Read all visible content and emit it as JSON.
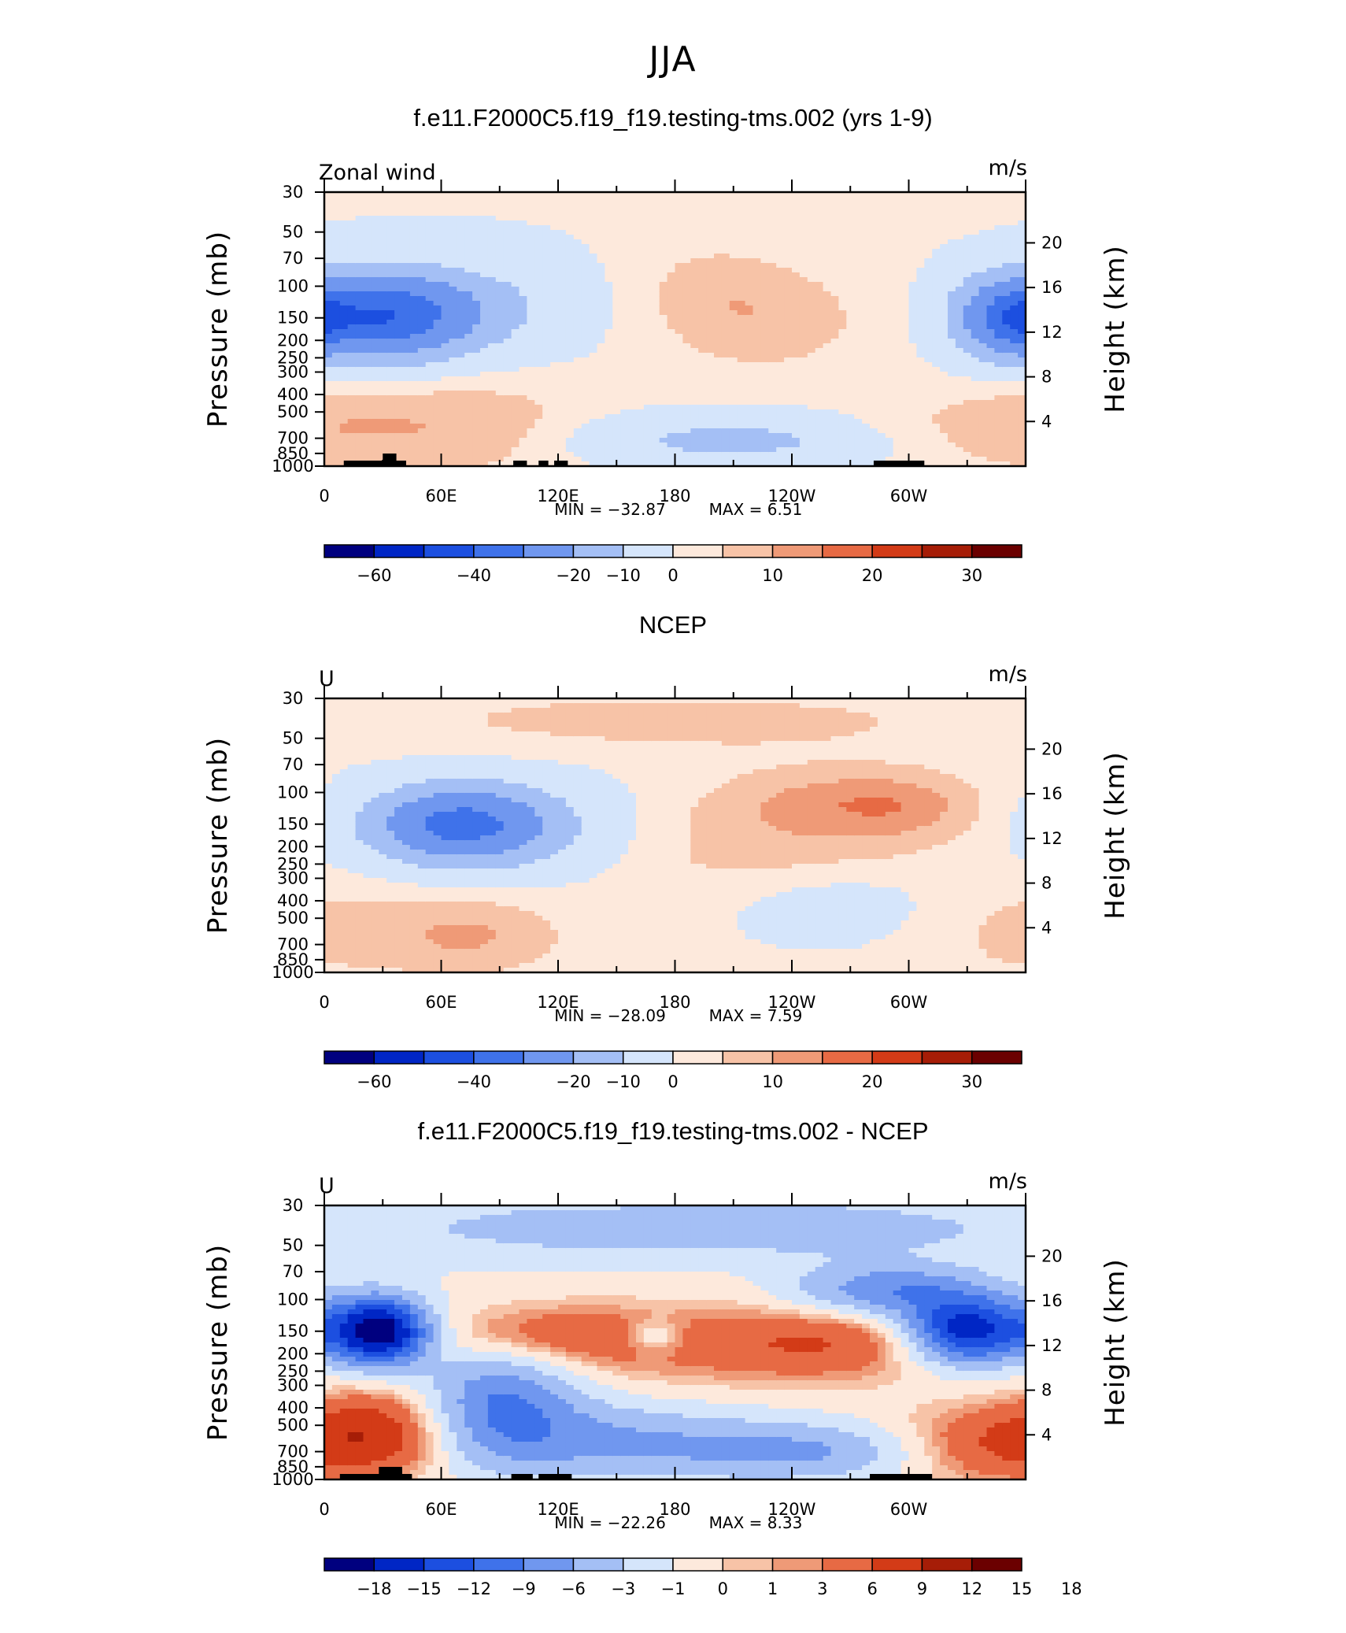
{
  "figure": {
    "main_title": "JJA",
    "colors": {
      "cmap": [
        "#00007f",
        "#0026c5",
        "#1c4fe0",
        "#3f72ea",
        "#7097ef",
        "#a4bff5",
        "#d5e5fb",
        "#fde9dc",
        "#f7c3a7",
        "#ef9a77",
        "#e76a44",
        "#d33b17",
        "#a61d07",
        "#6b0000"
      ]
    }
  },
  "chart_data": [
    {
      "type": "contour",
      "title": "f.e11.F2000C5.f19_f19.testing-tms.002 (yrs 1-9)",
      "variable_label": "Zonal wind",
      "units": "m/s",
      "ylabel": "Pressure (mb)",
      "ylabel_right": "Height (km)",
      "x_tick_labels": [
        "0",
        "60E",
        "120E",
        "180",
        "120W",
        "60W"
      ],
      "x_range": [
        0,
        360
      ],
      "y_range_mb": [
        1000,
        30
      ],
      "pressure_ticks": [
        "30",
        "50",
        "70",
        "100",
        "150",
        "200",
        "250",
        "300",
        "400",
        "500",
        "700",
        "850",
        "1000"
      ],
      "height_ticks": [
        "20",
        "16",
        "12",
        "8",
        "4"
      ],
      "min_label": "MIN = −32.87",
      "max_label": "MAX = 6.51",
      "colorbar_labels": [
        "−60",
        "−40",
        "−20",
        "−10",
        "0",
        "10",
        "20",
        "30"
      ],
      "topography": [
        [
          10,
          42,
          1000
        ],
        [
          30,
          37,
          900
        ],
        [
          97,
          104,
          1000
        ],
        [
          110,
          115,
          1000
        ],
        [
          118,
          125,
          1000
        ],
        [
          282,
          308,
          1000
        ]
      ],
      "features": [
        {
          "lon": 28,
          "p": 150,
          "sx": 32,
          "sy": 0.38,
          "a": -32.9
        },
        {
          "lon": 58,
          "p": 125,
          "sx": 45,
          "sy": 0.45,
          "a": -12
        },
        {
          "lon": 345,
          "p": 150,
          "sx": 16,
          "sy": 0.35,
          "a": -20
        },
        {
          "lon": 0,
          "p": 150,
          "sx": 10,
          "sy": 0.3,
          "a": -8
        },
        {
          "lon": 225,
          "p": 150,
          "sx": 38,
          "sy": 0.5,
          "a": 6.5
        },
        {
          "lon": 195,
          "p": 95,
          "sx": 25,
          "sy": 0.4,
          "a": 3
        },
        {
          "lon": 60,
          "p": 80,
          "sx": 35,
          "sy": 0.18,
          "a": 2.5
        },
        {
          "lon": 40,
          "p": 600,
          "sx": 45,
          "sy": 0.45,
          "a": 6.2
        },
        {
          "lon": 95,
          "p": 600,
          "sx": 35,
          "sy": 0.45,
          "a": 3
        },
        {
          "lon": 352,
          "p": 600,
          "sx": 28,
          "sy": 0.4,
          "a": 3
        },
        {
          "lon": 210,
          "p": 720,
          "sx": 55,
          "sy": 0.22,
          "a": -11
        },
        {
          "lon": 300,
          "p": 650,
          "sx": 30,
          "sy": 0.3,
          "a": 3
        }
      ],
      "base_value": -3.5
    },
    {
      "type": "contour",
      "title": "NCEP",
      "variable_label": "U",
      "units": "m/s",
      "ylabel": "Pressure (mb)",
      "ylabel_right": "Height (km)",
      "x_tick_labels": [
        "0",
        "60E",
        "120E",
        "180",
        "120W",
        "60W"
      ],
      "x_range": [
        0,
        360
      ],
      "y_range_mb": [
        1000,
        30
      ],
      "pressure_ticks": [
        "30",
        "50",
        "70",
        "100",
        "150",
        "200",
        "250",
        "300",
        "400",
        "500",
        "700",
        "850",
        "1000"
      ],
      "height_ticks": [
        "20",
        "16",
        "12",
        "8",
        "4"
      ],
      "min_label": "MIN = −28.09",
      "max_label": "MAX = 7.59",
      "colorbar_labels": [
        "−60",
        "−40",
        "−20",
        "−10",
        "0",
        "10",
        "20",
        "30"
      ],
      "topography": [],
      "features": [
        {
          "lon": 70,
          "p": 150,
          "sx": 30,
          "sy": 0.32,
          "a": -28.1
        },
        {
          "lon": 85,
          "p": 160,
          "sx": 50,
          "sy": 0.45,
          "a": -10
        },
        {
          "lon": 230,
          "p": 200,
          "sx": 60,
          "sy": 0.55,
          "a": 6
        },
        {
          "lon": 275,
          "p": 110,
          "sx": 45,
          "sy": 0.3,
          "a": 7.6
        },
        {
          "lon": 300,
          "p": 130,
          "sx": 25,
          "sy": 0.3,
          "a": 3
        },
        {
          "lon": 180,
          "p": 40,
          "sx": 120,
          "sy": 0.3,
          "a": 5
        },
        {
          "lon": 75,
          "p": 650,
          "sx": 32,
          "sy": 0.35,
          "a": 6
        },
        {
          "lon": 40,
          "p": 500,
          "sx": 60,
          "sy": 0.5,
          "a": 3
        },
        {
          "lon": 260,
          "p": 400,
          "sx": 40,
          "sy": 0.35,
          "a": -5
        },
        {
          "lon": 350,
          "p": 700,
          "sx": 30,
          "sy": 0.5,
          "a": 2.5
        }
      ],
      "base_value": -3.5
    },
    {
      "type": "contour",
      "title": "f.e11.F2000C5.f19_f19.testing-tms.002 - NCEP",
      "variable_label": "U",
      "units": "m/s",
      "ylabel": "Pressure (mb)",
      "ylabel_right": "Height (km)",
      "x_tick_labels": [
        "0",
        "60E",
        "120E",
        "180",
        "120W",
        "60W"
      ],
      "x_range": [
        0,
        360
      ],
      "y_range_mb": [
        1000,
        30
      ],
      "pressure_ticks": [
        "30",
        "50",
        "70",
        "100",
        "150",
        "200",
        "250",
        "300",
        "400",
        "500",
        "700",
        "850",
        "1000"
      ],
      "height_ticks": [
        "20",
        "16",
        "12",
        "8",
        "4"
      ],
      "min_label": "MIN = −22.26",
      "max_label": "MAX = 8.33",
      "colorbar_labels": [
        "−18",
        "−15",
        "−12",
        "−9",
        "−6",
        "−3",
        "−1",
        "0",
        "1",
        "3",
        "6",
        "9",
        "12",
        "15",
        "18"
      ],
      "topography": [
        [
          8,
          45,
          1000
        ],
        [
          28,
          40,
          880
        ],
        [
          96,
          107,
          1000
        ],
        [
          110,
          127,
          1000
        ],
        [
          280,
          312,
          1000
        ]
      ],
      "features": [
        {
          "lon": 28,
          "p": 150,
          "sx": 18,
          "sy": 0.3,
          "a": -22.3
        },
        {
          "lon": 330,
          "p": 150,
          "sx": 22,
          "sy": 0.3,
          "a": -18
        },
        {
          "lon": 290,
          "p": 90,
          "sx": 35,
          "sy": 0.25,
          "a": -9
        },
        {
          "lon": 130,
          "p": 40,
          "sx": 80,
          "sy": 0.3,
          "a": -4
        },
        {
          "lon": 270,
          "p": 40,
          "sx": 60,
          "sy": 0.25,
          "a": -4
        },
        {
          "lon": 90,
          "p": 350,
          "sx": 28,
          "sy": 0.5,
          "a": -9
        },
        {
          "lon": 140,
          "p": 600,
          "sx": 60,
          "sy": 0.35,
          "a": -6
        },
        {
          "lon": 250,
          "p": 700,
          "sx": 50,
          "sy": 0.25,
          "a": -6
        },
        {
          "lon": 110,
          "p": 160,
          "sx": 45,
          "sy": 0.3,
          "a": 5
        },
        {
          "lon": 260,
          "p": 170,
          "sx": 50,
          "sy": 0.35,
          "a": 5.5
        },
        {
          "lon": 180,
          "p": 200,
          "sx": 60,
          "sy": 0.5,
          "a": 2
        },
        {
          "lon": 170,
          "p": 160,
          "sx": 10,
          "sy": 0.15,
          "a": -4
        },
        {
          "lon": 30,
          "p": 550,
          "sx": 28,
          "sy": 0.4,
          "a": 8.3
        },
        {
          "lon": 335,
          "p": 650,
          "sx": 35,
          "sy": 0.35,
          "a": 6
        }
      ],
      "base_value": -1.5
    }
  ]
}
